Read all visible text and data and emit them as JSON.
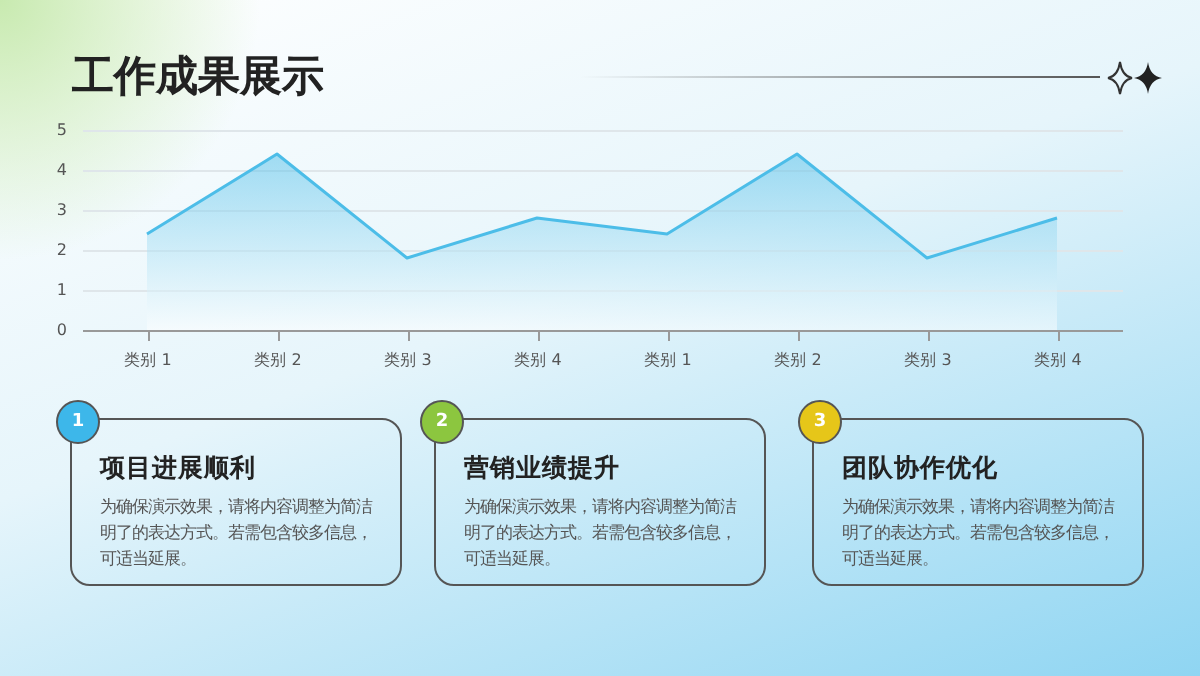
{
  "chart_data": [
    {
      "type": "area",
      "title": "工作成果展示",
      "categories": [
        "类别 1",
        "类别 2",
        "类别 3",
        "类别 4",
        "类别 1",
        "类别 2",
        "类别 3",
        "类别 4"
      ],
      "series": [
        {
          "color": "#4cbde8",
          "values": [
            2.4,
            4.4,
            1.8,
            2.8,
            2.4,
            4.4,
            1.8,
            2.8
          ]
        }
      ],
      "ylim": [
        0,
        5
      ],
      "yticks": [
        0,
        1,
        2,
        3,
        4,
        5
      ],
      "grid": "y"
    },
    {
      "type": "other",
      "title": "项目进展顺利",
      "annotations": [
        "1",
        "为确保演示效果，请将内容调整为简洁明了的表达方式。若需包含较多信息，可适当延展。"
      ]
    },
    {
      "type": "other",
      "title": "营销业绩提升",
      "annotations": [
        "2",
        "为确保演示效果，请将内容调整为简洁明了的表达方式。若需包含较多信息，可适当延展。"
      ]
    },
    {
      "type": "other",
      "title": "团队协作优化",
      "annotations": [
        "3",
        "为确保演示效果，请将内容调整为简洁明了的表达方式。若需包含较多信息，可适当延展。"
      ]
    }
  ]
}
